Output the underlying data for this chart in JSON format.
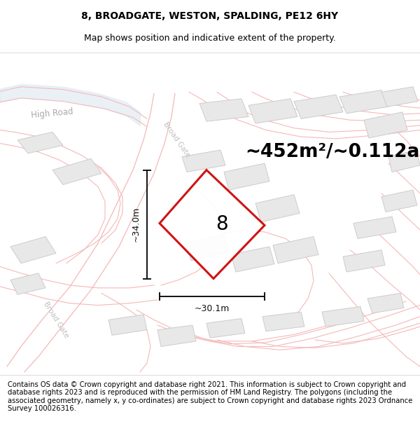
{
  "title": "8, BROADGATE, WESTON, SPALDING, PE12 6HY",
  "subtitle": "Map shows position and indicative extent of the property.",
  "area_label": "~452m²/~0.112ac.",
  "width_label": "~30.1m",
  "height_label": "~34.0m",
  "plot_number": "8",
  "map_bg": "#f8f8f8",
  "road_color": "#f5b8b8",
  "road_lw": 1.0,
  "building_color": "#e8e8e8",
  "building_edge": "#cccccc",
  "plot_outline_color": "#cc0000",
  "plot_fill_color": "#ffffff",
  "dim_line_color": "#111111",
  "footer_text": "Contains OS data © Crown copyright and database right 2021. This information is subject to Crown copyright and database rights 2023 and is reproduced with the permission of HM Land Registry. The polygons (including the associated geometry, namely x, y co-ordinates) are subject to Crown copyright and database rights 2023 Ordnance Survey 100026316.",
  "title_fontsize": 10,
  "subtitle_fontsize": 9,
  "area_fontsize": 19,
  "dim_fontsize": 9,
  "footer_fontsize": 7.2,
  "highroad_label": "High Road",
  "broadgate_label1": "Broad Gate",
  "broadgate_label2": "Broad Gate"
}
